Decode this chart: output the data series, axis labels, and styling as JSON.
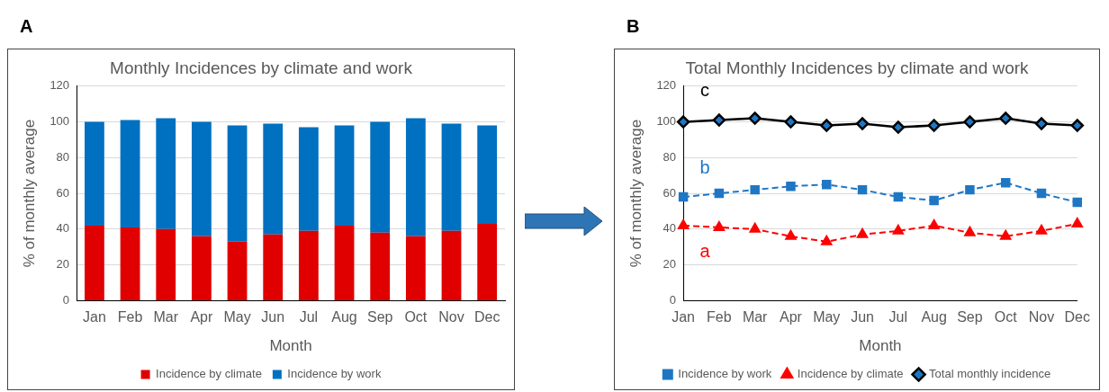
{
  "chart_data": [
    {
      "type": "bar",
      "title": "Monthly Incidences by climate and work",
      "xlabel": "Month",
      "ylabel": "% of monthly average",
      "categories": [
        "Jan",
        "Feb",
        "Mar",
        "Apr",
        "May",
        "Jun",
        "Jul",
        "Aug",
        "Sep",
        "Oct",
        "Nov",
        "Dec"
      ],
      "stacked": true,
      "ylim": [
        0,
        120
      ],
      "yticks": [
        0,
        20,
        40,
        60,
        80,
        100,
        120
      ],
      "grid": "y",
      "legend": "bottom",
      "annotations": [
        "A"
      ],
      "series": [
        {
          "name": "Incidence by climate",
          "color": "#e00000",
          "values": [
            42,
            41,
            40,
            36,
            33,
            37,
            39,
            42,
            38,
            36,
            39,
            43
          ]
        },
        {
          "name": "Incidence by work",
          "color": "#0070c0",
          "values": [
            58,
            60,
            62,
            64,
            65,
            62,
            58,
            56,
            62,
            66,
            60,
            55
          ]
        }
      ]
    },
    {
      "type": "line",
      "title": "Total Monthly Incidences by climate and work",
      "xlabel": "Month",
      "ylabel": "% of monthly average",
      "categories": [
        "Jan",
        "Feb",
        "Mar",
        "Apr",
        "May",
        "Jun",
        "Jul",
        "Aug",
        "Sep",
        "Oct",
        "Nov",
        "Dec"
      ],
      "ylim": [
        0,
        120
      ],
      "yticks": [
        0,
        20,
        40,
        60,
        80,
        100,
        120
      ],
      "grid": "y",
      "legend": "bottom",
      "annotations": [
        "B",
        "c",
        "b",
        "a"
      ],
      "series": [
        {
          "name": "Incidence by work",
          "color": "#1f77c4",
          "marker": "square",
          "line_style": "dashed",
          "values": [
            58,
            60,
            62,
            64,
            65,
            62,
            58,
            56,
            62,
            66,
            60,
            55
          ]
        },
        {
          "name": "Incidence by climate",
          "color": "#ff0000",
          "marker": "triangle",
          "line_style": "dashed",
          "values": [
            42,
            41,
            40,
            36,
            33,
            37,
            39,
            42,
            38,
            36,
            39,
            43
          ]
        },
        {
          "name": "Total monthly incidence",
          "color": "#000000",
          "marker": "diamond",
          "line_style": "solid",
          "values": [
            100,
            101,
            102,
            100,
            98,
            99,
            97,
            98,
            100,
            102,
            99,
            98
          ]
        }
      ]
    }
  ]
}
